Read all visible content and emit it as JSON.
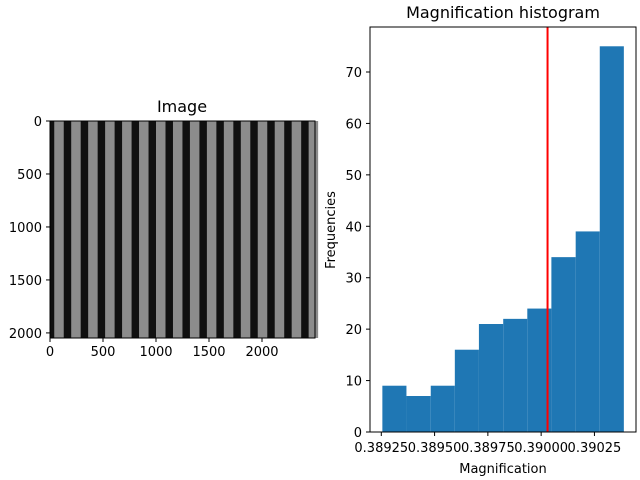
{
  "chart_data": [
    {
      "type": "heatmap",
      "title": "Image",
      "xlabel": "",
      "ylabel": "",
      "xlim": [
        0,
        2500
      ],
      "ylim": [
        2048,
        0
      ],
      "x_ticks": [
        0,
        500,
        1000,
        1500,
        2000
      ],
      "y_ticks": [
        0,
        500,
        1000,
        1500,
        2000
      ],
      "colormap": "gray",
      "stripe_period": 160,
      "stripe_count": 16,
      "stripe_color": "#8c8c8c",
      "background_color": "#101010"
    },
    {
      "type": "bar",
      "title": "Magnification histogram",
      "xlabel": "Magnification",
      "ylabel": "Frequencies",
      "bin_edges": [
        0.389255,
        0.389368,
        0.389482,
        0.389595,
        0.389708,
        0.389822,
        0.389935,
        0.390048,
        0.390162,
        0.390275,
        0.390388
      ],
      "values": [
        9,
        7,
        9,
        16,
        21,
        22,
        24,
        34,
        39,
        75
      ],
      "x_ticks": [
        "0.38925",
        "0.38950",
        "0.38975",
        "0.39000",
        "0.39025"
      ],
      "x_tick_values": [
        0.38925,
        0.3895,
        0.38975,
        0.39,
        0.39025
      ],
      "y_ticks": [
        0,
        10,
        20,
        30,
        40,
        50,
        60,
        70
      ],
      "ylim": [
        0,
        78.75
      ],
      "xlim": [
        0.389197,
        0.390445
      ],
      "bar_color": "#1f77b4",
      "marker_value": 0.39003,
      "marker_color": "#ff0000"
    }
  ]
}
